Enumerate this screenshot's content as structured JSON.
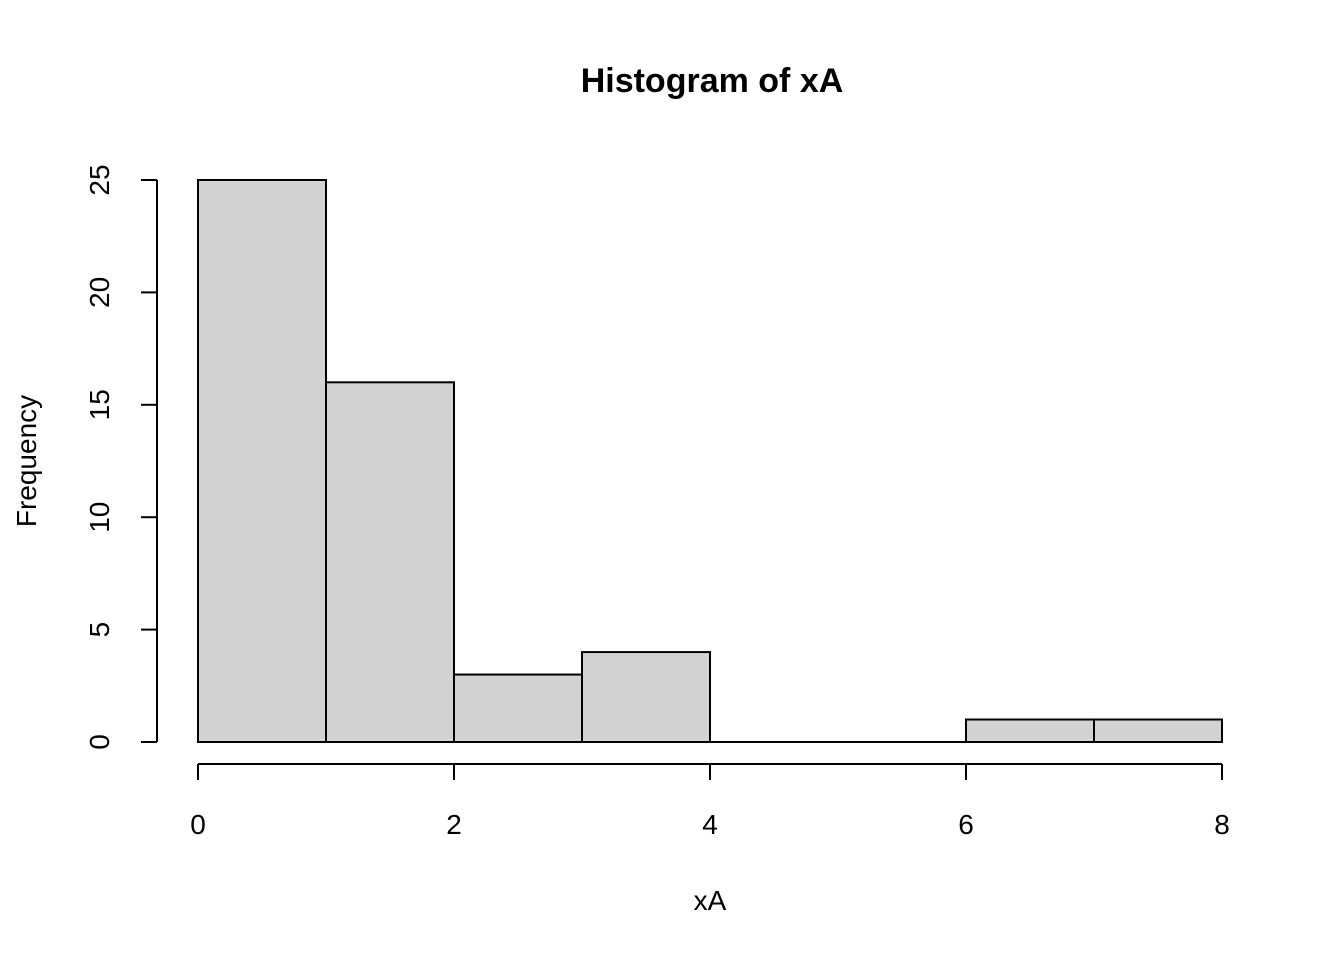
{
  "chart_data": {
    "type": "bar",
    "title": "Histogram of xA",
    "xlabel": "xA",
    "ylabel": "Frequency",
    "bins": [
      {
        "start": 0,
        "end": 1,
        "count": 25
      },
      {
        "start": 1,
        "end": 2,
        "count": 16
      },
      {
        "start": 2,
        "end": 3,
        "count": 3
      },
      {
        "start": 3,
        "end": 4,
        "count": 4
      },
      {
        "start": 4,
        "end": 5,
        "count": 0
      },
      {
        "start": 5,
        "end": 6,
        "count": 0
      },
      {
        "start": 6,
        "end": 7,
        "count": 1
      },
      {
        "start": 7,
        "end": 8,
        "count": 1
      }
    ],
    "xlim": [
      0,
      8
    ],
    "ylim": [
      0,
      25
    ],
    "x_ticks": [
      0,
      2,
      4,
      6,
      8
    ],
    "x_tick_labels": [
      "0",
      "2",
      "4",
      "6",
      "8"
    ],
    "y_ticks": [
      0,
      5,
      10,
      15,
      20,
      25
    ],
    "y_tick_labels": [
      "0",
      "5",
      "10",
      "15",
      "20",
      "25"
    ],
    "bar_fill": "#d3d3d3",
    "bar_stroke": "#000000",
    "grid": false,
    "legend": "none"
  }
}
